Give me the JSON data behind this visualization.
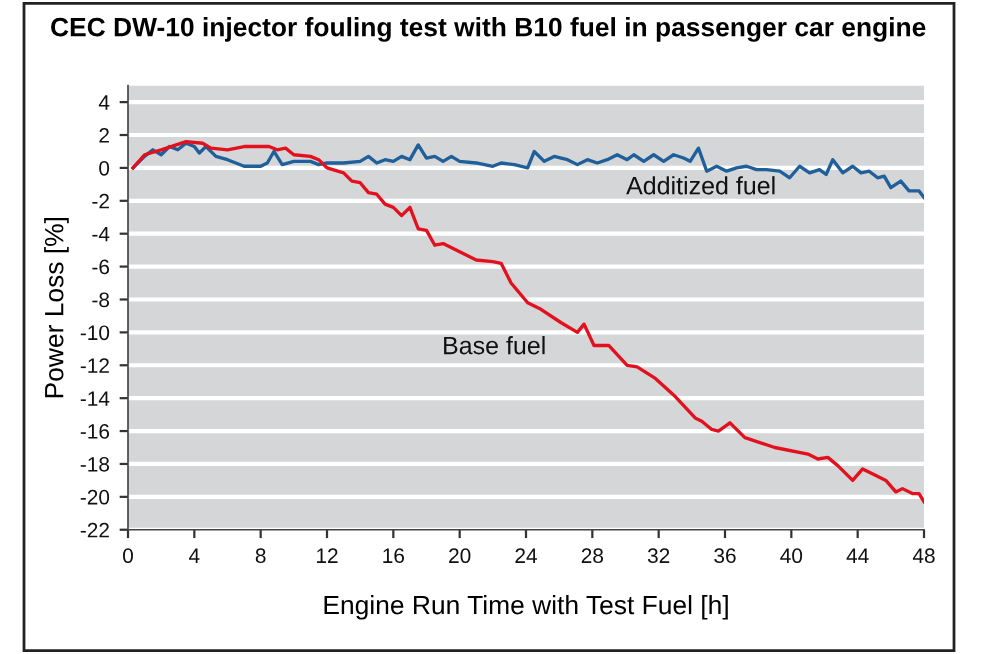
{
  "chart_data": {
    "type": "line",
    "title": "CEC DW-10 injector fouling test with B10 fuel in passenger car engine",
    "xlabel": "Engine Run Time with Test Fuel [h]",
    "ylabel": "Power Loss [%]",
    "xlim": [
      0,
      48
    ],
    "ylim": [
      -22,
      5
    ],
    "xticks": [
      0,
      4,
      8,
      12,
      16,
      20,
      24,
      28,
      32,
      36,
      40,
      44,
      48
    ],
    "yticks": [
      -22,
      -20,
      -18,
      -16,
      -14,
      -12,
      -10,
      -8,
      -6,
      -4,
      -2,
      0,
      2,
      4
    ],
    "grid": "y",
    "legend": false,
    "marker": "none",
    "line_style": "solid",
    "series": [
      {
        "name": "Additized fuel",
        "color": "#1f5f9a",
        "x": [
          0.3,
          1,
          1.5,
          2,
          2.5,
          3,
          3.5,
          4,
          4.3,
          4.7,
          5.3,
          6,
          7,
          8,
          8.4,
          8.8,
          9.3,
          10,
          11,
          11.5,
          12,
          13,
          14,
          14.5,
          15,
          15.5,
          16,
          16.5,
          17,
          17.5,
          18,
          18.5,
          19,
          19.5,
          20,
          21,
          22,
          22.5,
          23.3,
          24.1,
          24.5,
          25.1,
          25.7,
          26.5,
          27.1,
          27.7,
          28.3,
          28.9,
          29.5,
          30.1,
          30.5,
          31.1,
          31.7,
          32.3,
          32.9,
          33.5,
          33.9,
          34.4,
          34.9,
          35.5,
          36.1,
          36.7,
          37.3,
          37.9,
          38.5,
          39.3,
          39.9,
          40.5,
          41.1,
          41.7,
          42.1,
          42.5,
          43.1,
          43.7,
          44.2,
          44.7,
          45.2,
          45.6,
          46,
          46.6,
          47.1,
          47.7,
          48
        ],
        "values": [
          0,
          0.7,
          1.1,
          0.8,
          1.3,
          1.1,
          1.5,
          1.3,
          0.9,
          1.3,
          0.7,
          0.5,
          0.1,
          0.1,
          0.3,
          1.0,
          0.2,
          0.4,
          0.4,
          0.2,
          0.3,
          0.3,
          0.4,
          0.7,
          0.3,
          0.5,
          0.4,
          0.7,
          0.5,
          1.4,
          0.6,
          0.7,
          0.4,
          0.7,
          0.4,
          0.3,
          0.1,
          0.3,
          0.2,
          0,
          1.0,
          0.4,
          0.7,
          0.5,
          0.2,
          0.5,
          0.3,
          0.5,
          0.8,
          0.5,
          0.8,
          0.4,
          0.8,
          0.4,
          0.8,
          0.6,
          0.4,
          1.2,
          -0.2,
          0.1,
          -0.2,
          0,
          0.1,
          -0.1,
          -0.1,
          -0.2,
          -0.6,
          0.1,
          -0.3,
          -0.1,
          -0.4,
          0.5,
          -0.3,
          0.1,
          -0.3,
          -0.2,
          -0.6,
          -0.5,
          -1.2,
          -0.8,
          -1.4,
          -1.4,
          -1.8
        ]
      },
      {
        "name": "Base fuel",
        "color": "#e3101e",
        "x": [
          0.3,
          1,
          2,
          3.5,
          4.5,
          5,
          6,
          7,
          8.5,
          9,
          9.5,
          10,
          11,
          11.5,
          12,
          13,
          13.5,
          14,
          14.5,
          15,
          15.5,
          16,
          16.5,
          17,
          17.5,
          18,
          18.5,
          19,
          20,
          21,
          22,
          22.5,
          23.1,
          24.1,
          24.9,
          26.1,
          27.1,
          27.5,
          28.1,
          29,
          30.1,
          30.7,
          31.8,
          33,
          34.2,
          34.6,
          35.2,
          35.6,
          36.3,
          37.2,
          39,
          41,
          41.6,
          42.2,
          42.8,
          43.7,
          44.3,
          45.1,
          45.7,
          46.3,
          46.7,
          47.3,
          47.7,
          48
        ],
        "values": [
          0,
          0.8,
          1.1,
          1.6,
          1.5,
          1.2,
          1.1,
          1.3,
          1.3,
          1.1,
          1.2,
          0.8,
          0.7,
          0.5,
          0,
          -0.3,
          -0.8,
          -0.9,
          -1.5,
          -1.6,
          -2.2,
          -2.4,
          -2.9,
          -2.4,
          -3.7,
          -3.8,
          -4.7,
          -4.6,
          -5.1,
          -5.6,
          -5.7,
          -5.8,
          -7.0,
          -8.2,
          -8.6,
          -9.4,
          -10.0,
          -9.5,
          -10.8,
          -10.8,
          -12.0,
          -12.1,
          -12.8,
          -13.9,
          -15.2,
          -15.4,
          -15.9,
          -16.0,
          -15.5,
          -16.4,
          -17.0,
          -17.4,
          -17.7,
          -17.6,
          -18.1,
          -19.0,
          -18.3,
          -18.7,
          -19.0,
          -19.7,
          -19.5,
          -19.8,
          -19.8,
          -20.3
        ]
      }
    ]
  }
}
